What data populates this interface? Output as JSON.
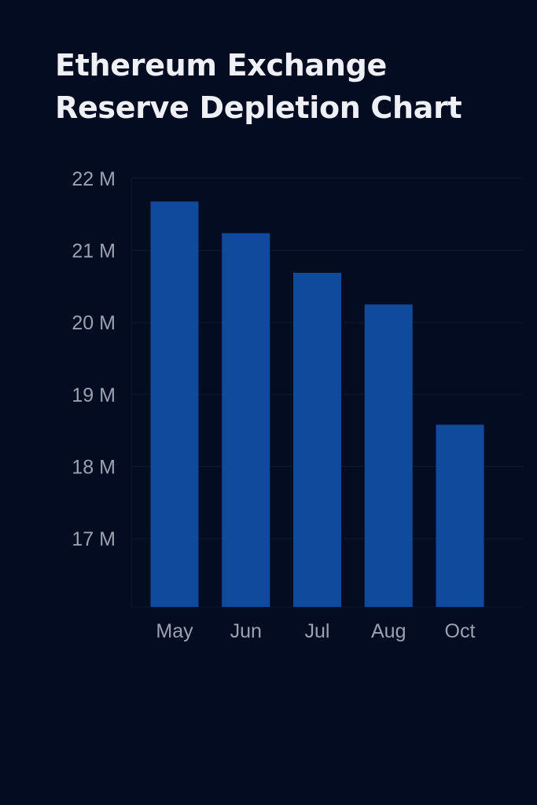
{
  "chart_data": {
    "type": "bar",
    "title_lines": [
      "Ethereum Exchange",
      "Reserve Depletion Chart"
    ],
    "categories": [
      "May",
      "Jun",
      "Jul",
      "Aug",
      "Oct"
    ],
    "values": [
      21.68,
      21.24,
      20.69,
      20.25,
      18.58
    ],
    "ylim": [
      16.05,
      22
    ],
    "yticks": [
      17,
      18,
      19,
      20,
      21,
      22
    ],
    "ytick_labels": [
      "17 M",
      "18 M",
      "19 M",
      "20 M",
      "21 M",
      "22 M"
    ],
    "grid": true,
    "legend": "none",
    "colors": {
      "background": "#030c21",
      "bar": "#0f4a9c",
      "grid": "#0e1a33",
      "tick_text": "#9aa1b1",
      "title_text": "#eef0f6"
    }
  }
}
